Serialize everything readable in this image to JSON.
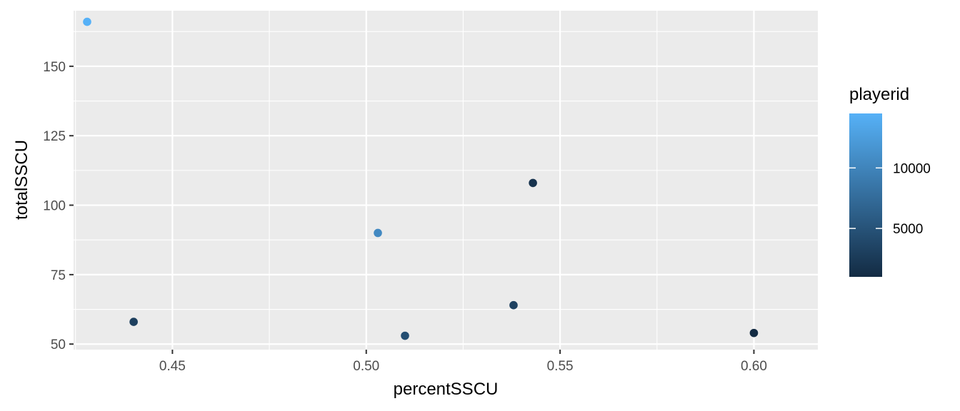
{
  "chart_data": {
    "type": "scatter",
    "xlabel": "percentSSCU",
    "ylabel": "totalSSCU",
    "xlim": [
      0.4245,
      0.6165
    ],
    "ylim": [
      48.0,
      170.0
    ],
    "x_ticks": [
      0.45,
      0.5,
      0.55,
      0.6
    ],
    "x_tick_labels": [
      "0.45",
      "0.50",
      "0.55",
      "0.60"
    ],
    "y_ticks": [
      50,
      75,
      100,
      125,
      150
    ],
    "y_tick_labels": [
      "50",
      "75",
      "100",
      "125",
      "150"
    ],
    "grid": true,
    "colors": {
      "panel_background": "#ebebeb",
      "grid": "#ffffff",
      "color_low": "#132b43",
      "color_high": "#56b1f7"
    },
    "legend": {
      "title": "playerid",
      "placement": "right",
      "type": "colorbar",
      "range": [
        1000,
        14500
      ],
      "breaks": [
        5000,
        10000
      ],
      "labels": [
        "5000",
        "10000"
      ]
    },
    "points": [
      {
        "x": 0.428,
        "y": 166,
        "playerid": 14500
      },
      {
        "x": 0.44,
        "y": 58,
        "playerid": 3000
      },
      {
        "x": 0.503,
        "y": 90,
        "playerid": 10500
      },
      {
        "x": 0.51,
        "y": 53,
        "playerid": 4500
      },
      {
        "x": 0.538,
        "y": 64,
        "playerid": 3200
      },
      {
        "x": 0.543,
        "y": 108,
        "playerid": 1800
      },
      {
        "x": 0.6,
        "y": 54,
        "playerid": 1000
      }
    ]
  }
}
